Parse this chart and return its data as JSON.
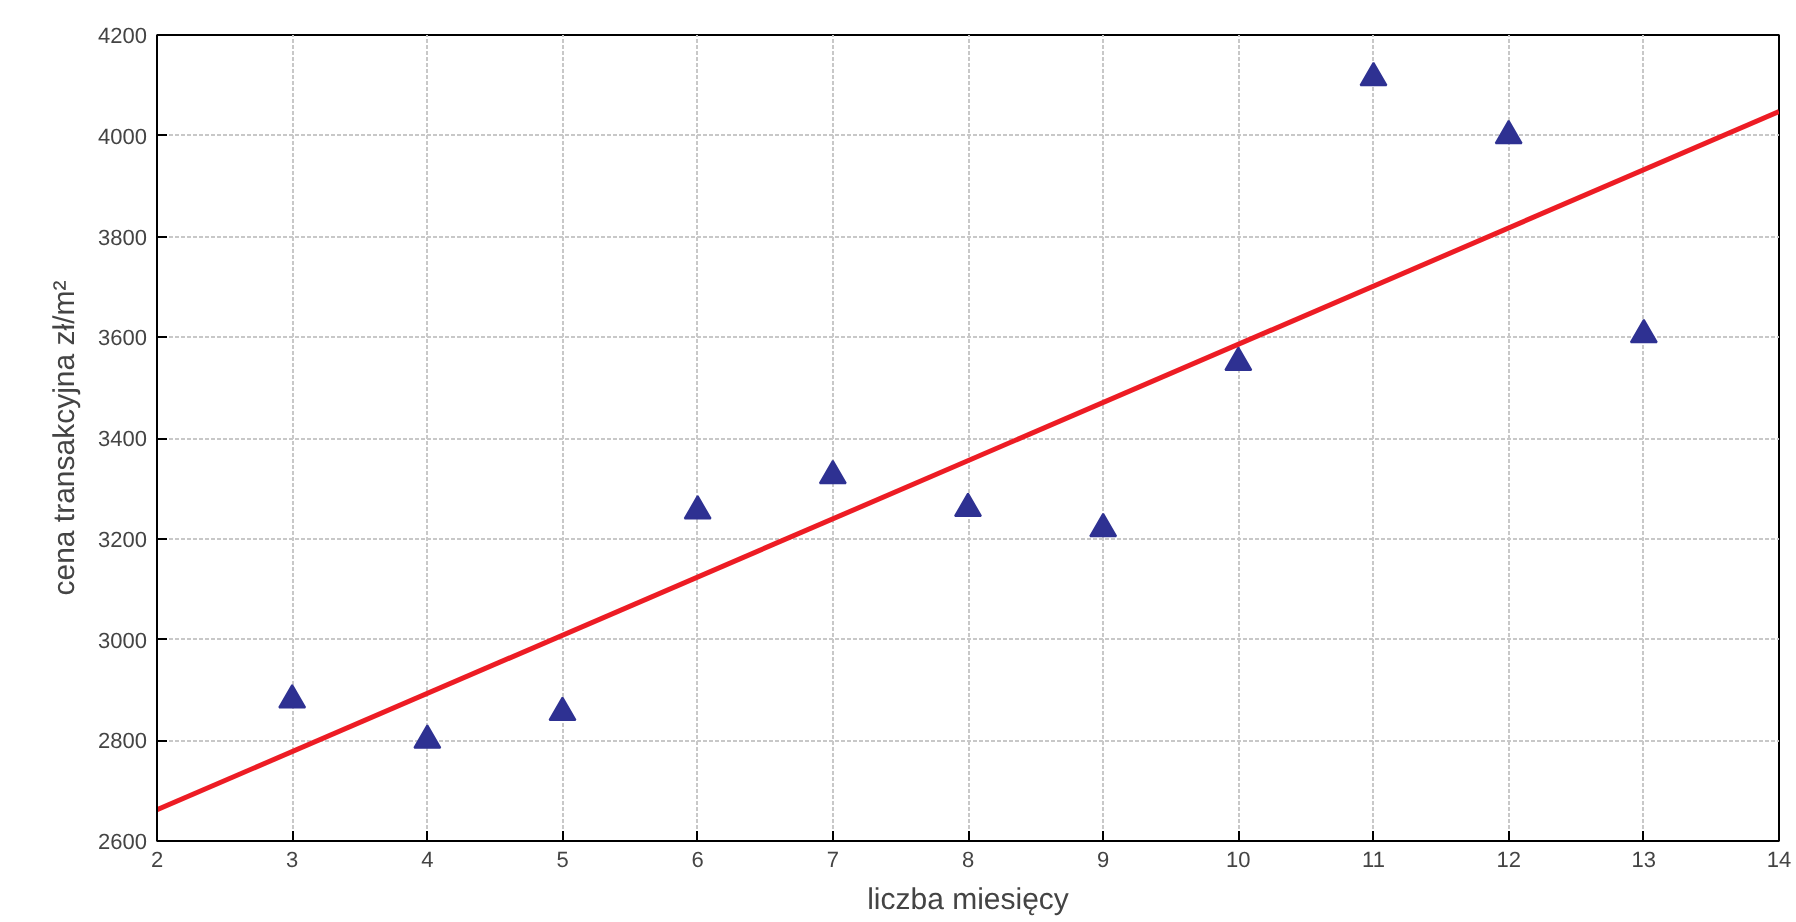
{
  "chart_data": {
    "type": "scatter",
    "xlabel": "liczba miesięcy",
    "ylabel": "cena transakcyjna zł/m²",
    "xlim": [
      2,
      14
    ],
    "ylim": [
      2600,
      4200
    ],
    "xticks": [
      2,
      3,
      4,
      5,
      6,
      7,
      8,
      9,
      10,
      11,
      12,
      13,
      14
    ],
    "yticks": [
      2600,
      2800,
      3000,
      3200,
      3400,
      3600,
      3800,
      4000,
      4200
    ],
    "grid": true,
    "marker": "triangle",
    "series": [
      {
        "color": "#2e3192",
        "x": [
          3,
          4,
          5,
          6,
          7,
          8,
          9,
          10,
          11,
          12,
          13
        ],
        "values": [
          2880,
          2800,
          2855,
          3255,
          3325,
          3260,
          3220,
          3550,
          4115,
          4000,
          3605
        ]
      },
      {
        "type": "line",
        "color": "#ed1c24",
        "x": [
          2,
          14
        ],
        "values": [
          2662,
          4048
        ],
        "line_style": "solid",
        "marker": "none"
      }
    ]
  }
}
